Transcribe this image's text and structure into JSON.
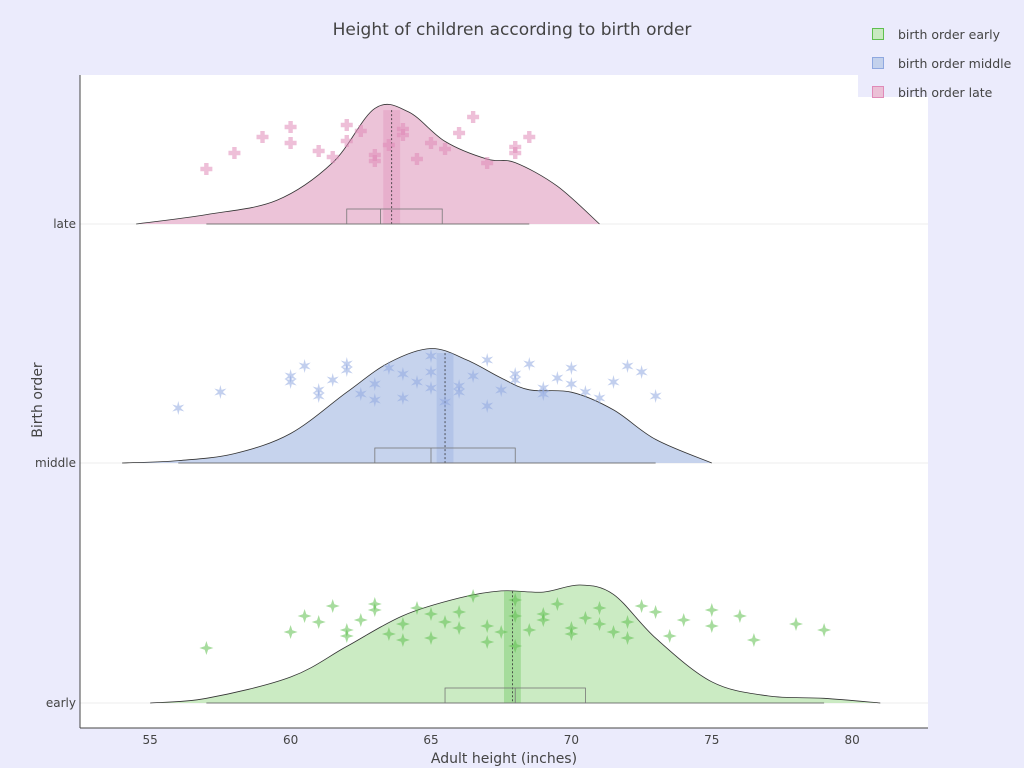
{
  "chart_data": {
    "type": "violin",
    "title": "Height of children according to birth order",
    "xlabel": "Adult height (inches)",
    "ylabel": "Birth order",
    "xlim": [
      52.5,
      82.7
    ],
    "xticks": [
      55,
      60,
      65,
      70,
      75,
      80
    ],
    "orientation": "horizontal",
    "legend_position": "top-right",
    "series": [
      {
        "name": "birth order early",
        "category": "early",
        "color": "#5fbf4f",
        "fill": "#c8eac0",
        "marker": "star4",
        "range": [
          57,
          79
        ],
        "q1": 65.5,
        "median": 68,
        "q3": 70.5,
        "mean": 67.9,
        "density": [
          [
            55,
            0.0
          ],
          [
            57,
            0.04
          ],
          [
            60,
            0.22
          ],
          [
            62,
            0.48
          ],
          [
            64,
            0.74
          ],
          [
            66,
            0.89
          ],
          [
            67.5,
            0.95
          ],
          [
            69,
            0.94
          ],
          [
            70.3,
            1.0
          ],
          [
            71.5,
            0.92
          ],
          [
            73,
            0.55
          ],
          [
            75,
            0.18
          ],
          [
            77,
            0.06
          ],
          [
            79,
            0.04
          ],
          [
            81,
            0.0
          ]
        ],
        "points": [
          57,
          60,
          60.5,
          61,
          61.5,
          62,
          62,
          62.5,
          63,
          63,
          63.5,
          64,
          64,
          64.5,
          65,
          65,
          65.5,
          66,
          66,
          66.5,
          67,
          67,
          67.5,
          68,
          68,
          68,
          68.5,
          69,
          69,
          69.5,
          70,
          70,
          70.5,
          71,
          71,
          71.5,
          72,
          72,
          72.5,
          73,
          73.5,
          74,
          75,
          75,
          76,
          76.5,
          78,
          79
        ]
      },
      {
        "name": "birth order middle",
        "category": "middle",
        "color": "#8fa8e0",
        "fill": "#c3d1ec",
        "marker": "star6",
        "range": [
          56,
          73
        ],
        "q1": 63,
        "median": 65,
        "q3": 68,
        "mean": 65.5,
        "density": [
          [
            54,
            0.0
          ],
          [
            56,
            0.02
          ],
          [
            58,
            0.08
          ],
          [
            60,
            0.25
          ],
          [
            62,
            0.6
          ],
          [
            63.5,
            0.85
          ],
          [
            65,
            0.97
          ],
          [
            66.3,
            0.87
          ],
          [
            67.5,
            0.72
          ],
          [
            68.5,
            0.62
          ],
          [
            70,
            0.6
          ],
          [
            71.5,
            0.45
          ],
          [
            73,
            0.2
          ],
          [
            75,
            0.0
          ]
        ],
        "points": [
          56,
          57.5,
          60,
          60,
          60.5,
          61,
          61,
          61.5,
          62,
          62,
          62.5,
          63,
          63,
          63.5,
          64,
          64,
          64.5,
          65,
          65,
          65,
          65.5,
          66,
          66,
          66.5,
          67,
          67,
          67.5,
          68,
          68,
          68.5,
          69,
          69,
          69.5,
          70,
          70,
          70.5,
          71,
          71.5,
          72,
          72.5,
          73
        ]
      },
      {
        "name": "birth order late",
        "category": "late",
        "color": "#e08ab8",
        "fill": "#ebc0d6",
        "marker": "cross",
        "range": [
          57,
          68.5
        ],
        "q1": 62,
        "median": 63.2,
        "q3": 65.4,
        "mean": 63.6,
        "density": [
          [
            54.5,
            0.0
          ],
          [
            57,
            0.08
          ],
          [
            59.5,
            0.2
          ],
          [
            61.5,
            0.52
          ],
          [
            63,
            0.98
          ],
          [
            64.2,
            0.95
          ],
          [
            65.5,
            0.7
          ],
          [
            67,
            0.55
          ],
          [
            68,
            0.52
          ],
          [
            69.5,
            0.32
          ],
          [
            71,
            0.0
          ]
        ],
        "points": [
          57,
          58,
          59,
          60,
          60,
          61,
          61.5,
          62,
          62,
          62.5,
          63,
          63,
          63.5,
          64,
          64,
          64.5,
          65,
          65.5,
          66,
          66.5,
          67,
          68,
          68,
          68.5
        ]
      }
    ]
  }
}
